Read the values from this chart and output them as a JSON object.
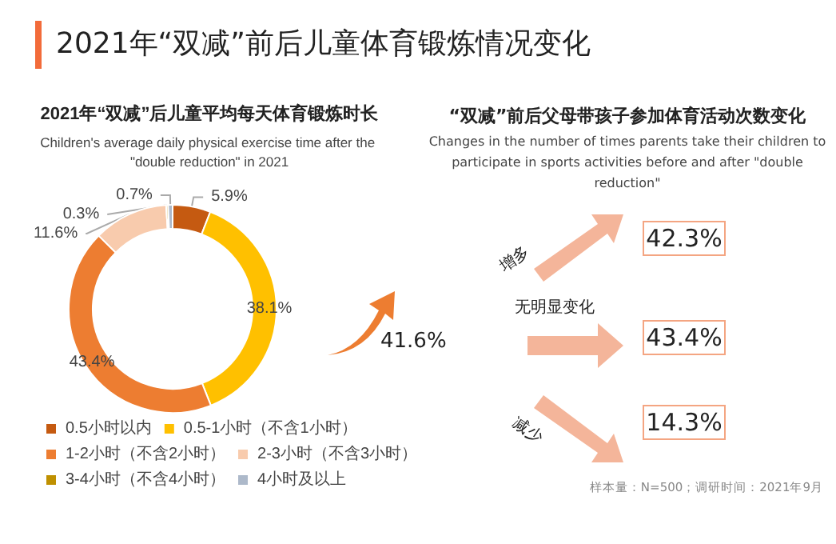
{
  "chart_data": [
    {
      "type": "donut",
      "title": "2021年“双减”后儿童平均每天体育锻炼时长",
      "subtitle": "Children's average daily physical exercise time after the \"double reduction\" in 2021",
      "annotations": [
        "2021年“双减”前后儿童体育锻炼情况变化",
        "41.6%"
      ],
      "categories": [
        "0.5小时以内",
        "0.5-1小时（不含1小时）",
        "1-2小时（不含2小时）",
        "2-3小时（不含3小时）",
        "3-4小时（不含4小时）",
        "4小时及以上"
      ],
      "values": [
        5.9,
        38.1,
        43.4,
        11.6,
        0.3,
        0.7
      ],
      "colors": [
        "#c55a11",
        "#ffc000",
        "#ed7d31",
        "#f8cbad",
        "#bf9000",
        "#adb9ca"
      ],
      "value_labels": [
        "5.9%",
        "38.1%",
        "43.4%",
        "11.6%",
        "0.3%",
        "0.7%"
      ],
      "legend": "bottom"
    },
    {
      "type": "other",
      "title": "“双减”前后父母带孩子参加体育活动次数变化",
      "subtitle": "Changes in the number of times parents take their children to participate in sports activities before and after \"double reduction\"",
      "categories": [
        "增多",
        "无明显变化",
        "减少"
      ],
      "values": [
        42.3,
        43.4,
        14.3
      ],
      "value_labels": [
        "42.3%",
        "43.4%",
        "14.3%"
      ],
      "annotations": [
        "样本量：N=500；调研时间：2021年9月"
      ]
    }
  ]
}
